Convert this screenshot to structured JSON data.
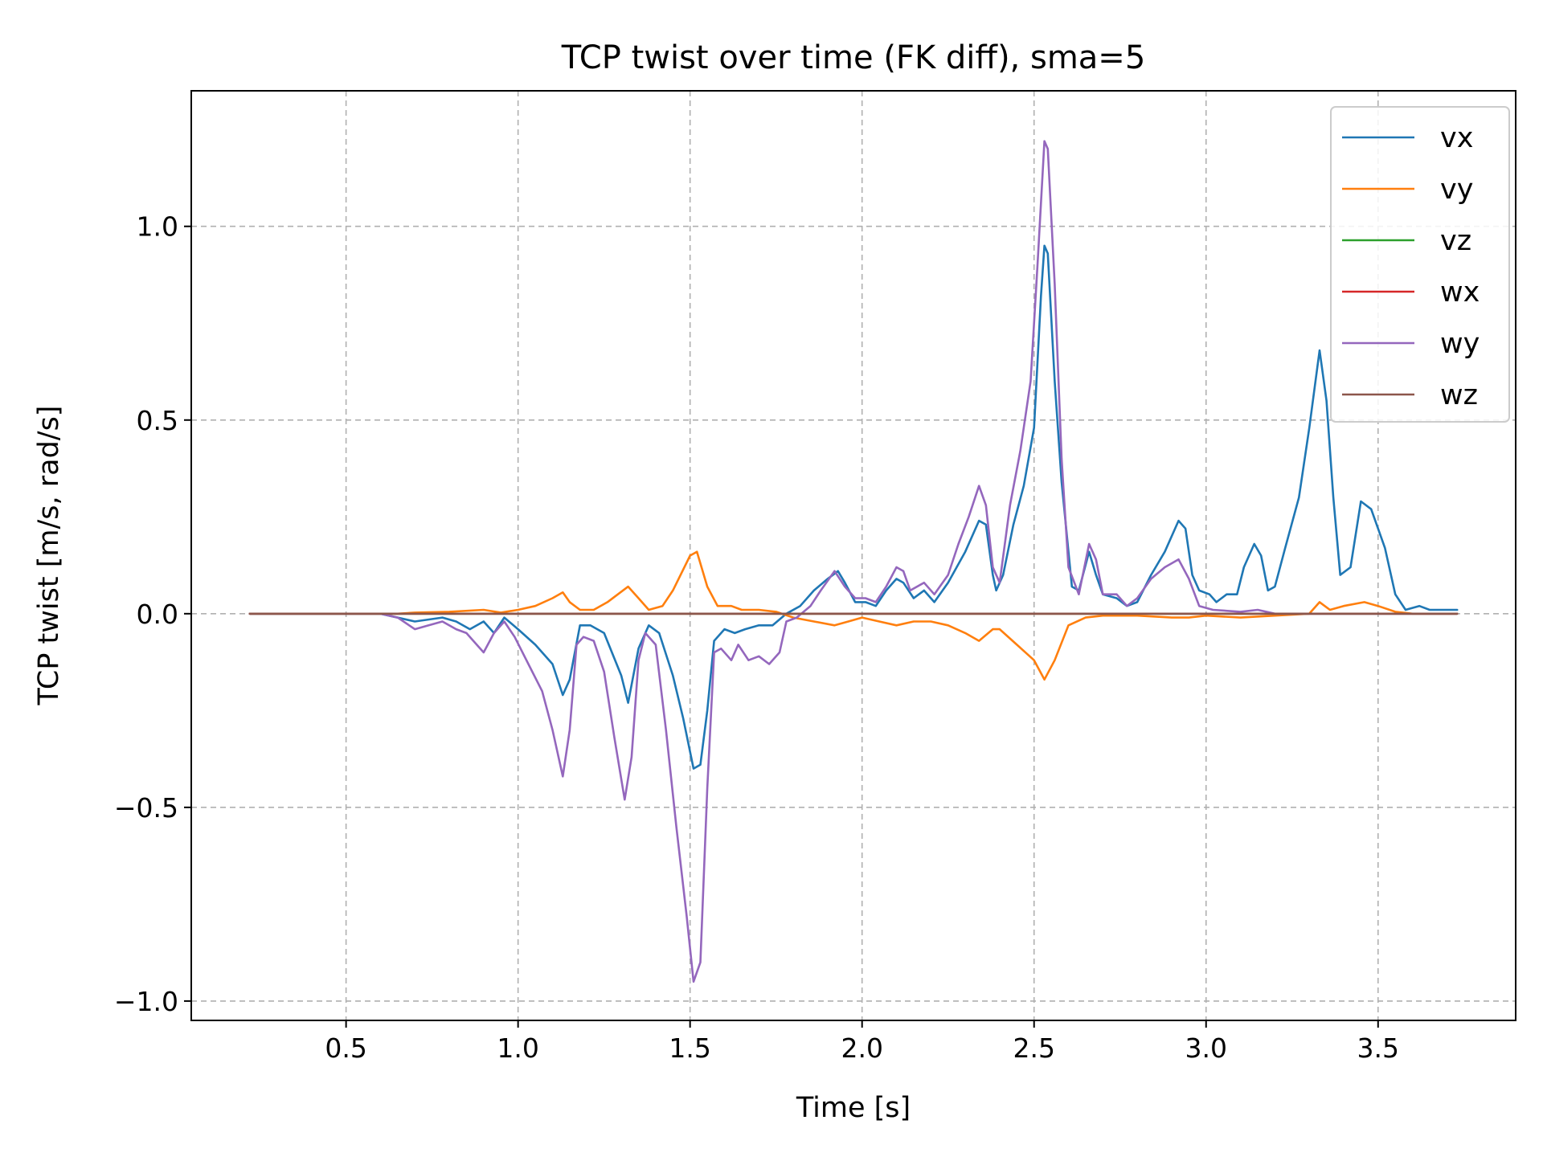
{
  "chart_data": {
    "type": "line",
    "title": "TCP twist over time (FK diff), sma=5",
    "xlabel": "Time [s]",
    "ylabel": "TCP twist [m/s, rad/s]",
    "xlim": [
      0.05,
      3.9
    ],
    "ylim": [
      -1.05,
      1.35
    ],
    "xticks": [
      0.5,
      1.0,
      1.5,
      2.0,
      2.5,
      3.0,
      3.5
    ],
    "xtick_labels": [
      "0.5",
      "1.0",
      "1.5",
      "2.0",
      "2.5",
      "3.0",
      "3.5"
    ],
    "yticks": [
      -1.0,
      -0.5,
      0.0,
      0.5,
      1.0
    ],
    "ytick_labels": [
      "−1.0",
      "−0.5",
      "0.0",
      "0.5",
      "1.0"
    ],
    "grid": true,
    "legend_position": "top-right",
    "series": [
      {
        "name": "vx",
        "color": "#1f77b4",
        "points": [
          [
            0.22,
            0
          ],
          [
            0.6,
            0
          ],
          [
            0.7,
            -0.02
          ],
          [
            0.78,
            -0.01
          ],
          [
            0.82,
            -0.02
          ],
          [
            0.86,
            -0.04
          ],
          [
            0.9,
            -0.02
          ],
          [
            0.93,
            -0.05
          ],
          [
            0.96,
            -0.01
          ],
          [
            1.0,
            -0.04
          ],
          [
            1.05,
            -0.08
          ],
          [
            1.1,
            -0.13
          ],
          [
            1.13,
            -0.21
          ],
          [
            1.15,
            -0.17
          ],
          [
            1.18,
            -0.03
          ],
          [
            1.21,
            -0.03
          ],
          [
            1.25,
            -0.05
          ],
          [
            1.3,
            -0.16
          ],
          [
            1.32,
            -0.23
          ],
          [
            1.35,
            -0.09
          ],
          [
            1.38,
            -0.03
          ],
          [
            1.41,
            -0.05
          ],
          [
            1.45,
            -0.16
          ],
          [
            1.48,
            -0.27
          ],
          [
            1.51,
            -0.4
          ],
          [
            1.53,
            -0.39
          ],
          [
            1.55,
            -0.25
          ],
          [
            1.57,
            -0.07
          ],
          [
            1.6,
            -0.04
          ],
          [
            1.63,
            -0.05
          ],
          [
            1.66,
            -0.04
          ],
          [
            1.7,
            -0.03
          ],
          [
            1.74,
            -0.03
          ],
          [
            1.78,
            0.0
          ],
          [
            1.82,
            0.02
          ],
          [
            1.86,
            0.06
          ],
          [
            1.9,
            0.09
          ],
          [
            1.93,
            0.11
          ],
          [
            1.95,
            0.08
          ],
          [
            1.98,
            0.03
          ],
          [
            2.01,
            0.03
          ],
          [
            2.04,
            0.02
          ],
          [
            2.07,
            0.06
          ],
          [
            2.1,
            0.09
          ],
          [
            2.12,
            0.08
          ],
          [
            2.15,
            0.04
          ],
          [
            2.18,
            0.06
          ],
          [
            2.21,
            0.03
          ],
          [
            2.25,
            0.08
          ],
          [
            2.3,
            0.16
          ],
          [
            2.34,
            0.24
          ],
          [
            2.36,
            0.23
          ],
          [
            2.38,
            0.1
          ],
          [
            2.39,
            0.06
          ],
          [
            2.41,
            0.1
          ],
          [
            2.44,
            0.23
          ],
          [
            2.47,
            0.33
          ],
          [
            2.5,
            0.48
          ],
          [
            2.52,
            0.82
          ],
          [
            2.53,
            0.95
          ],
          [
            2.54,
            0.93
          ],
          [
            2.56,
            0.6
          ],
          [
            2.58,
            0.34
          ],
          [
            2.61,
            0.07
          ],
          [
            2.63,
            0.06
          ],
          [
            2.66,
            0.16
          ],
          [
            2.68,
            0.1
          ],
          [
            2.7,
            0.05
          ],
          [
            2.74,
            0.04
          ],
          [
            2.77,
            0.02
          ],
          [
            2.8,
            0.03
          ],
          [
            2.84,
            0.1
          ],
          [
            2.88,
            0.16
          ],
          [
            2.92,
            0.24
          ],
          [
            2.94,
            0.22
          ],
          [
            2.96,
            0.1
          ],
          [
            2.98,
            0.06
          ],
          [
            3.01,
            0.05
          ],
          [
            3.03,
            0.03
          ],
          [
            3.06,
            0.05
          ],
          [
            3.09,
            0.05
          ],
          [
            3.11,
            0.12
          ],
          [
            3.14,
            0.18
          ],
          [
            3.16,
            0.15
          ],
          [
            3.18,
            0.06
          ],
          [
            3.2,
            0.07
          ],
          [
            3.23,
            0.17
          ],
          [
            3.27,
            0.3
          ],
          [
            3.3,
            0.48
          ],
          [
            3.33,
            0.68
          ],
          [
            3.35,
            0.55
          ],
          [
            3.37,
            0.3
          ],
          [
            3.39,
            0.1
          ],
          [
            3.42,
            0.12
          ],
          [
            3.45,
            0.29
          ],
          [
            3.48,
            0.27
          ],
          [
            3.52,
            0.17
          ],
          [
            3.55,
            0.05
          ],
          [
            3.58,
            0.01
          ],
          [
            3.62,
            0.02
          ],
          [
            3.65,
            0.01
          ],
          [
            3.7,
            0.01
          ],
          [
            3.73,
            0.01
          ]
        ]
      },
      {
        "name": "vy",
        "color": "#ff7f0e",
        "points": [
          [
            0.22,
            0
          ],
          [
            0.65,
            0
          ],
          [
            0.7,
            0.003
          ],
          [
            0.8,
            0.005
          ],
          [
            0.9,
            0.01
          ],
          [
            0.95,
            0.003
          ],
          [
            1.0,
            0.01
          ],
          [
            1.05,
            0.02
          ],
          [
            1.1,
            0.04
          ],
          [
            1.13,
            0.055
          ],
          [
            1.15,
            0.03
          ],
          [
            1.18,
            0.01
          ],
          [
            1.22,
            0.01
          ],
          [
            1.26,
            0.03
          ],
          [
            1.29,
            0.05
          ],
          [
            1.32,
            0.07
          ],
          [
            1.35,
            0.04
          ],
          [
            1.38,
            0.01
          ],
          [
            1.42,
            0.02
          ],
          [
            1.45,
            0.06
          ],
          [
            1.5,
            0.15
          ],
          [
            1.52,
            0.16
          ],
          [
            1.55,
            0.07
          ],
          [
            1.58,
            0.02
          ],
          [
            1.62,
            0.02
          ],
          [
            1.65,
            0.01
          ],
          [
            1.7,
            0.01
          ],
          [
            1.75,
            0.005
          ],
          [
            1.8,
            -0.01
          ],
          [
            1.86,
            -0.02
          ],
          [
            1.92,
            -0.03
          ],
          [
            1.96,
            -0.02
          ],
          [
            2.0,
            -0.01
          ],
          [
            2.05,
            -0.02
          ],
          [
            2.1,
            -0.03
          ],
          [
            2.15,
            -0.02
          ],
          [
            2.2,
            -0.02
          ],
          [
            2.25,
            -0.03
          ],
          [
            2.3,
            -0.05
          ],
          [
            2.34,
            -0.07
          ],
          [
            2.38,
            -0.04
          ],
          [
            2.4,
            -0.04
          ],
          [
            2.45,
            -0.08
          ],
          [
            2.5,
            -0.12
          ],
          [
            2.53,
            -0.17
          ],
          [
            2.56,
            -0.12
          ],
          [
            2.6,
            -0.03
          ],
          [
            2.65,
            -0.01
          ],
          [
            2.7,
            -0.005
          ],
          [
            2.8,
            -0.005
          ],
          [
            2.9,
            -0.01
          ],
          [
            2.95,
            -0.01
          ],
          [
            3.0,
            -0.005
          ],
          [
            3.1,
            -0.01
          ],
          [
            3.2,
            -0.005
          ],
          [
            3.3,
            0.0
          ],
          [
            3.33,
            0.03
          ],
          [
            3.36,
            0.01
          ],
          [
            3.4,
            0.02
          ],
          [
            3.46,
            0.03
          ],
          [
            3.5,
            0.02
          ],
          [
            3.55,
            0.005
          ],
          [
            3.6,
            0.0
          ],
          [
            3.73,
            0.0
          ]
        ]
      },
      {
        "name": "vz",
        "color": "#2ca02c",
        "points": [
          [
            0.22,
            0
          ],
          [
            3.73,
            0
          ]
        ]
      },
      {
        "name": "wx",
        "color": "#d62728",
        "points": [
          [
            0.22,
            0
          ],
          [
            3.73,
            0
          ]
        ]
      },
      {
        "name": "wy",
        "color": "#9467bd",
        "points": [
          [
            0.22,
            0
          ],
          [
            0.6,
            0
          ],
          [
            0.65,
            -0.01
          ],
          [
            0.7,
            -0.04
          ],
          [
            0.74,
            -0.03
          ],
          [
            0.78,
            -0.02
          ],
          [
            0.82,
            -0.04
          ],
          [
            0.85,
            -0.05
          ],
          [
            0.87,
            -0.07
          ],
          [
            0.9,
            -0.1
          ],
          [
            0.93,
            -0.05
          ],
          [
            0.96,
            -0.02
          ],
          [
            0.99,
            -0.06
          ],
          [
            1.03,
            -0.13
          ],
          [
            1.07,
            -0.2
          ],
          [
            1.1,
            -0.3
          ],
          [
            1.13,
            -0.42
          ],
          [
            1.15,
            -0.3
          ],
          [
            1.17,
            -0.08
          ],
          [
            1.19,
            -0.06
          ],
          [
            1.22,
            -0.07
          ],
          [
            1.25,
            -0.15
          ],
          [
            1.28,
            -0.32
          ],
          [
            1.31,
            -0.48
          ],
          [
            1.33,
            -0.37
          ],
          [
            1.35,
            -0.12
          ],
          [
            1.37,
            -0.05
          ],
          [
            1.4,
            -0.08
          ],
          [
            1.43,
            -0.3
          ],
          [
            1.46,
            -0.55
          ],
          [
            1.49,
            -0.78
          ],
          [
            1.51,
            -0.95
          ],
          [
            1.53,
            -0.9
          ],
          [
            1.55,
            -0.45
          ],
          [
            1.57,
            -0.1
          ],
          [
            1.59,
            -0.09
          ],
          [
            1.62,
            -0.12
          ],
          [
            1.64,
            -0.08
          ],
          [
            1.67,
            -0.12
          ],
          [
            1.7,
            -0.11
          ],
          [
            1.73,
            -0.13
          ],
          [
            1.76,
            -0.1
          ],
          [
            1.78,
            -0.02
          ],
          [
            1.81,
            -0.01
          ],
          [
            1.85,
            0.02
          ],
          [
            1.88,
            0.06
          ],
          [
            1.92,
            0.11
          ],
          [
            1.95,
            0.07
          ],
          [
            1.98,
            0.04
          ],
          [
            2.01,
            0.04
          ],
          [
            2.04,
            0.03
          ],
          [
            2.07,
            0.07
          ],
          [
            2.1,
            0.12
          ],
          [
            2.12,
            0.11
          ],
          [
            2.14,
            0.06
          ],
          [
            2.18,
            0.08
          ],
          [
            2.21,
            0.05
          ],
          [
            2.25,
            0.1
          ],
          [
            2.28,
            0.18
          ],
          [
            2.31,
            0.25
          ],
          [
            2.34,
            0.33
          ],
          [
            2.36,
            0.28
          ],
          [
            2.38,
            0.12
          ],
          [
            2.4,
            0.08
          ],
          [
            2.43,
            0.28
          ],
          [
            2.46,
            0.42
          ],
          [
            2.49,
            0.6
          ],
          [
            2.51,
            0.9
          ],
          [
            2.53,
            1.22
          ],
          [
            2.54,
            1.2
          ],
          [
            2.56,
            0.85
          ],
          [
            2.58,
            0.4
          ],
          [
            2.6,
            0.12
          ],
          [
            2.63,
            0.05
          ],
          [
            2.66,
            0.18
          ],
          [
            2.68,
            0.14
          ],
          [
            2.7,
            0.05
          ],
          [
            2.74,
            0.05
          ],
          [
            2.77,
            0.02
          ],
          [
            2.8,
            0.04
          ],
          [
            2.84,
            0.09
          ],
          [
            2.88,
            0.12
          ],
          [
            2.92,
            0.14
          ],
          [
            2.95,
            0.09
          ],
          [
            2.98,
            0.02
          ],
          [
            3.02,
            0.01
          ],
          [
            3.1,
            0.005
          ],
          [
            3.15,
            0.01
          ],
          [
            3.2,
            0.0
          ],
          [
            3.73,
            0.0
          ]
        ]
      },
      {
        "name": "wz",
        "color": "#8c564b",
        "points": [
          [
            0.22,
            0
          ],
          [
            3.73,
            0
          ]
        ]
      }
    ]
  }
}
